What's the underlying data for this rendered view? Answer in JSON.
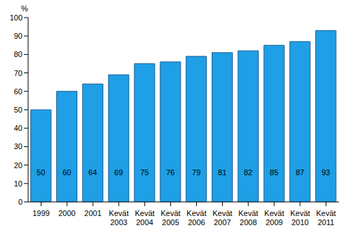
{
  "chart_data": {
    "type": "bar",
    "ylabel": "%",
    "categories": [
      "1999",
      "2000",
      "2001",
      "Kevät 2003",
      "Kevät 2004",
      "Kevät 2005",
      "Kevät 2006",
      "Kevät 2007",
      "Kevät 2008",
      "Kevät 2009",
      "Kevät 2010",
      "Kevät 2011"
    ],
    "values": [
      50,
      60,
      64,
      69,
      75,
      76,
      79,
      81,
      82,
      85,
      87,
      93
    ],
    "color": "#1e9fe6",
    "ylim": [
      0,
      100
    ],
    "yticks": [
      0,
      10,
      20,
      30,
      40,
      50,
      60,
      70,
      80,
      90,
      100
    ],
    "grid": false,
    "data_labels": true
  }
}
